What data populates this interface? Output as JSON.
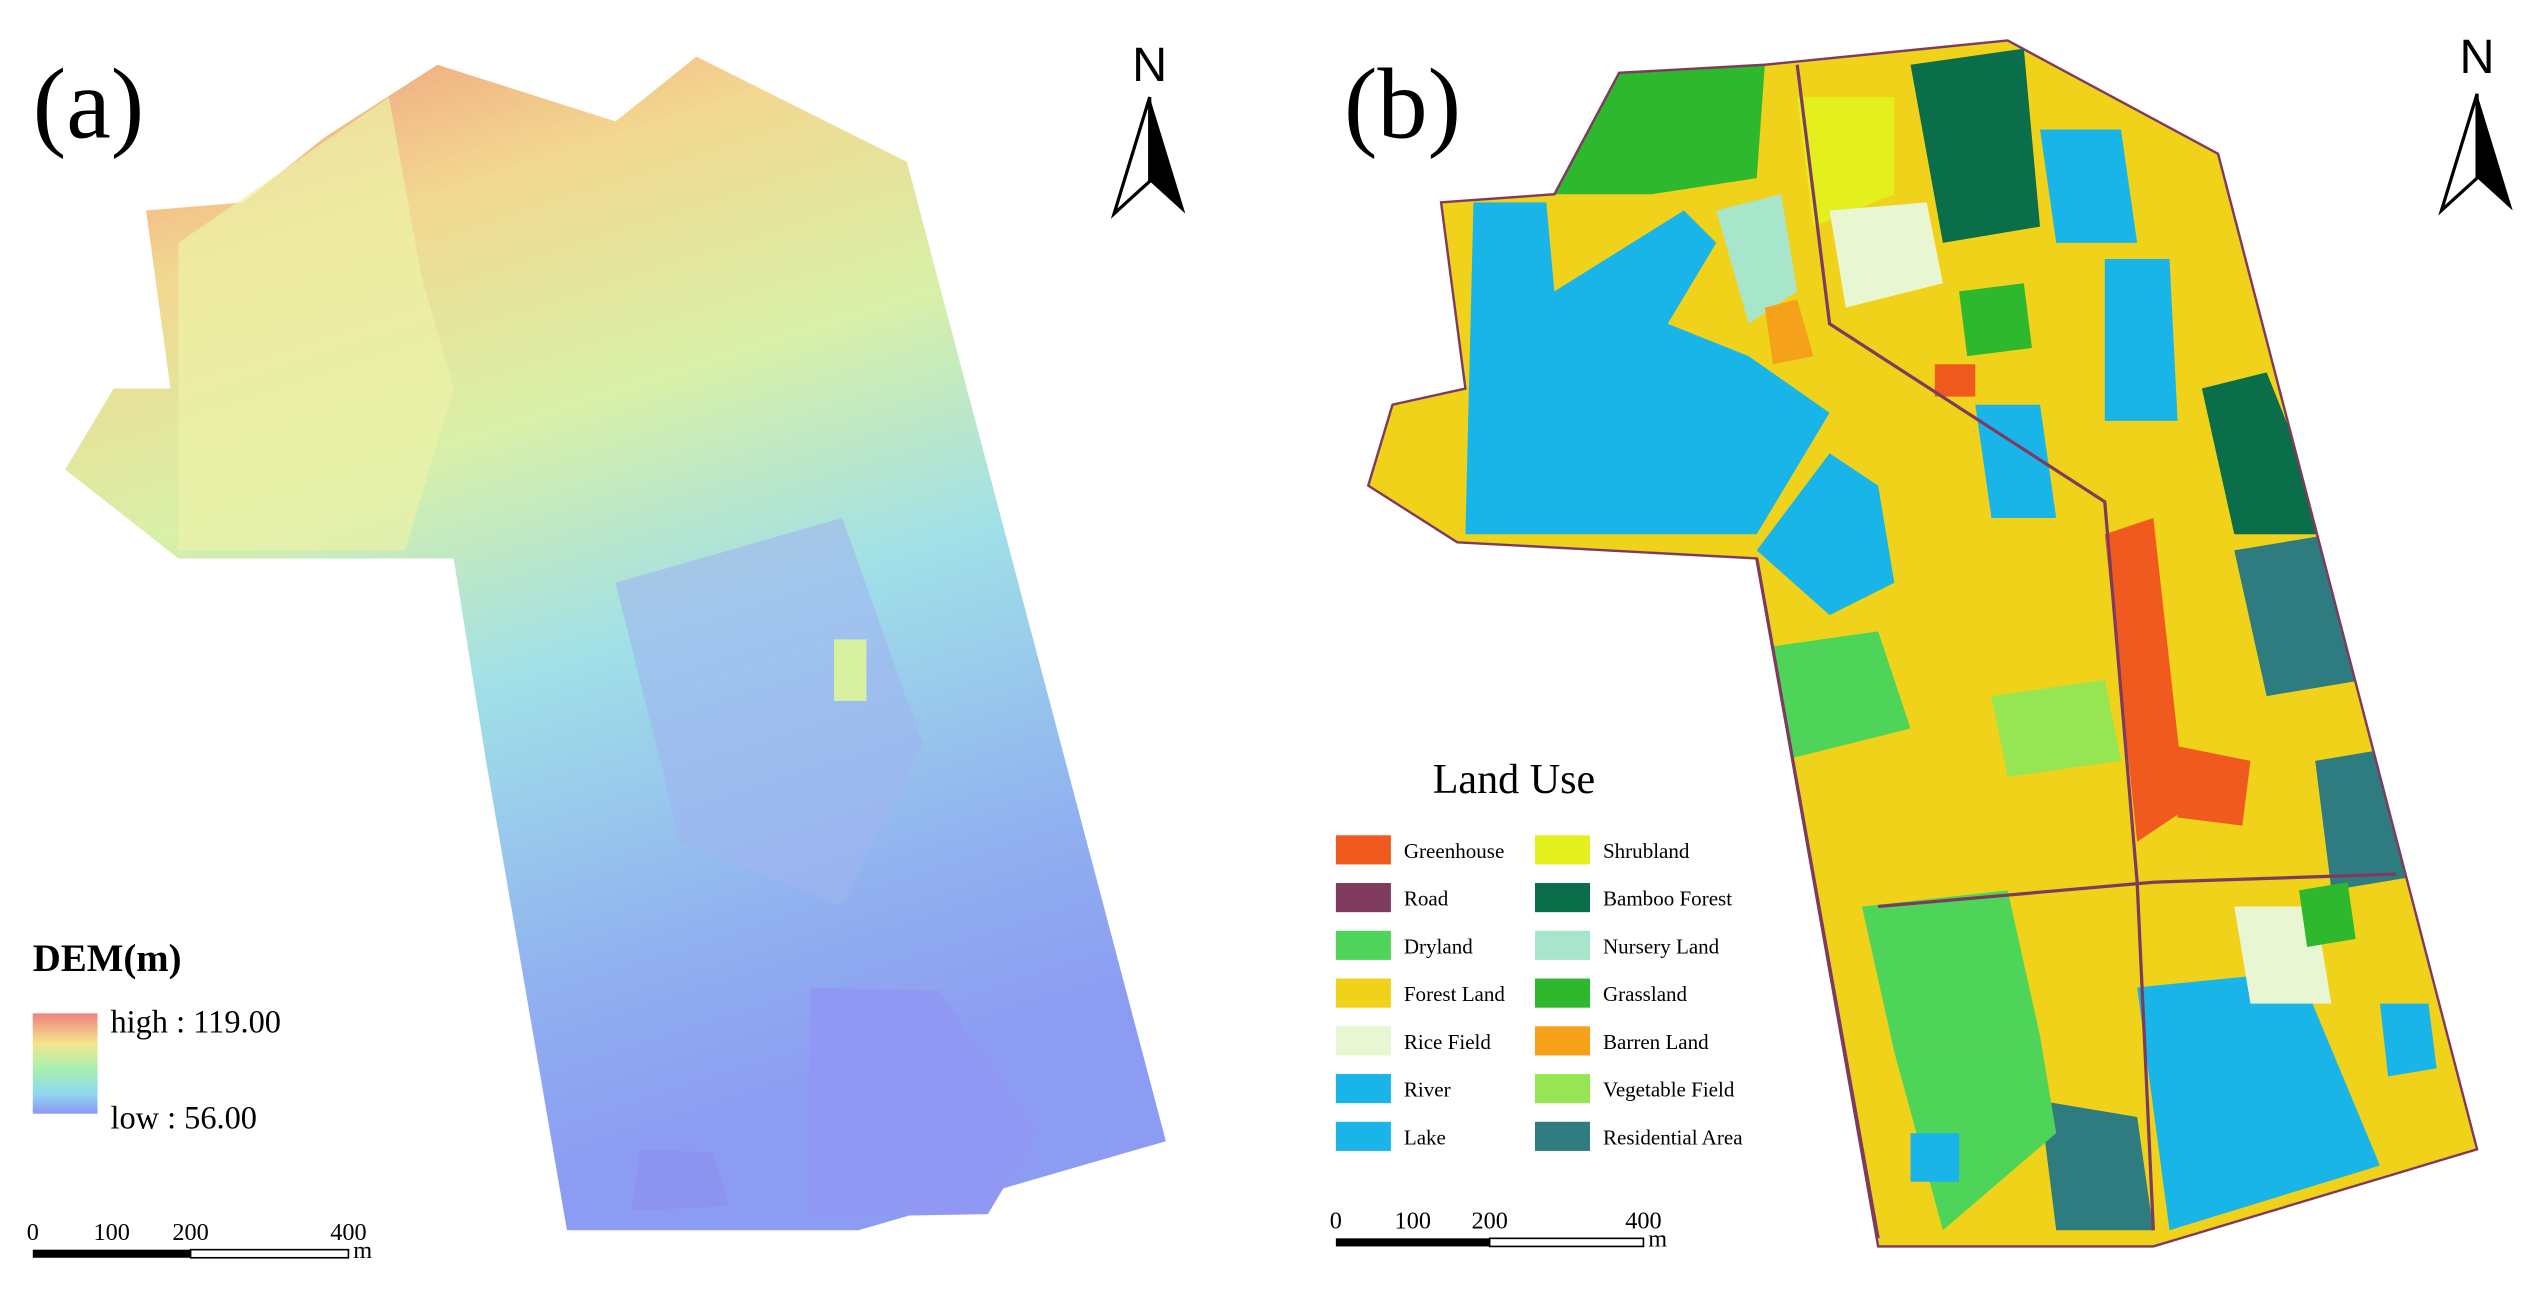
{
  "panels": [
    {
      "label": "(a)",
      "north": "N",
      "legend_title": "DEM(m)",
      "legend_high": "high : 119.00",
      "legend_low": "low : 56.00",
      "scale_labels": [
        "0",
        "100",
        "200",
        "400"
      ],
      "scale_unit": "m"
    },
    {
      "label": "(b)",
      "north": "N",
      "legend_title": "Land Use",
      "legend_items": [
        {
          "name": "Greenhouse",
          "color": "#f05a1e"
        },
        {
          "name": "Road",
          "color": "#7e3b5e"
        },
        {
          "name": "Dryland",
          "color": "#4fd45a"
        },
        {
          "name": "Forest Land",
          "color": "#f0d21a"
        },
        {
          "name": "Rice Field",
          "color": "#e8f6d2"
        },
        {
          "name": "River",
          "color": "#1ab5e8"
        },
        {
          "name": "Lake",
          "color": "#1ab5e8"
        },
        {
          "name": "Shrubland",
          "color": "#e3f01e"
        },
        {
          "name": "Bamboo Forest",
          "color": "#0a6e4a"
        },
        {
          "name": "Nursery Land",
          "color": "#a8e6cc"
        },
        {
          "name": "Grassland",
          "color": "#2db82d"
        },
        {
          "name": "Barren Land",
          "color": "#f5a11a"
        },
        {
          "name": "Vegetable Field",
          "color": "#96e654"
        },
        {
          "name": "Residential Area",
          "color": "#2e7b80"
        }
      ],
      "scale_labels": [
        "0",
        "100",
        "200",
        "400"
      ],
      "scale_unit": "m"
    }
  ]
}
